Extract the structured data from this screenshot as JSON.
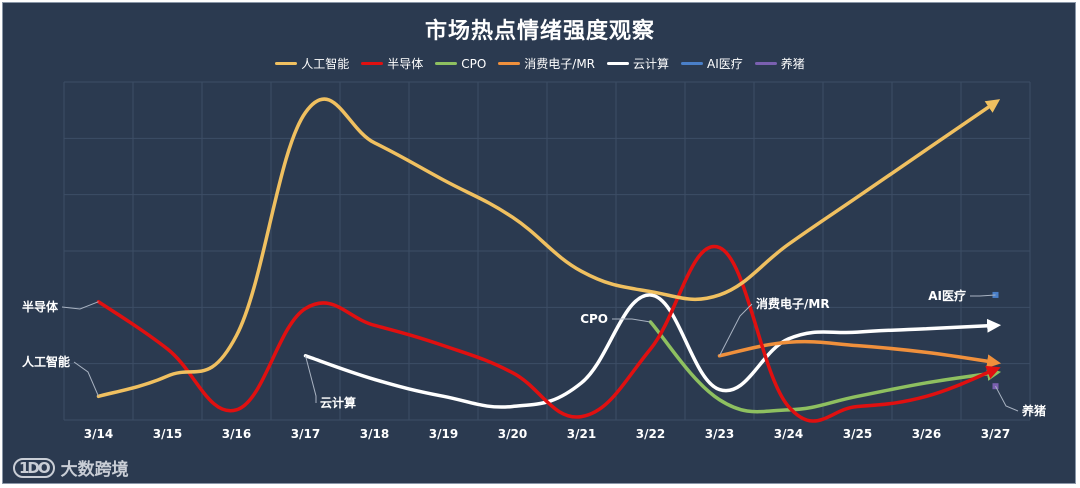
{
  "chart_data": {
    "type": "line",
    "title": "市场热点情绪强度观察",
    "categories": [
      "3/14",
      "3/15",
      "3/16",
      "3/17",
      "3/18",
      "3/19",
      "3/20",
      "3/21",
      "3/22",
      "3/23",
      "3/24",
      "3/25",
      "3/26",
      "3/27"
    ],
    "ylim": [
      0,
      100
    ],
    "grid": true,
    "legend": "top",
    "series": [
      {
        "name": "人工智能",
        "color": "#f0c060",
        "values": [
          7,
          13,
          25,
          91,
          82,
          71,
          60,
          44,
          38,
          37,
          52,
          66,
          80,
          94
        ],
        "label": "人工智能"
      },
      {
        "name": "半导体",
        "color": "#e01010",
        "values": [
          35,
          21,
          3,
          33,
          28,
          22,
          14,
          1,
          21,
          51,
          4,
          4,
          7,
          15
        ],
        "label": "半导体"
      },
      {
        "name": "CPO",
        "color": "#8ec060",
        "values": [
          null,
          null,
          null,
          null,
          null,
          null,
          null,
          null,
          29,
          6,
          3,
          7,
          11,
          14
        ],
        "label": "CPO"
      },
      {
        "name": "消费电子/MR",
        "color": "#f0903c",
        "values": [
          null,
          null,
          null,
          null,
          null,
          null,
          null,
          null,
          null,
          19,
          23,
          22,
          20,
          17
        ],
        "label": "消费电子/MR"
      },
      {
        "name": "云计算",
        "color": "#ffffff",
        "values": [
          null,
          null,
          null,
          19,
          12,
          7,
          4,
          11,
          37,
          9,
          24,
          26,
          27,
          28
        ],
        "label": "云计算"
      },
      {
        "name": "AI医疗",
        "color": "#4a7fc8",
        "values": [
          null,
          null,
          null,
          null,
          null,
          null,
          null,
          null,
          null,
          null,
          null,
          null,
          null,
          37
        ],
        "label": "AI医疗"
      },
      {
        "name": "养猪",
        "color": "#7a60b0",
        "values": [
          null,
          null,
          null,
          null,
          null,
          null,
          null,
          null,
          null,
          null,
          null,
          null,
          null,
          10
        ],
        "label": "养猪"
      }
    ]
  },
  "watermark": {
    "logo": "1DO",
    "text": "大数跨境"
  }
}
